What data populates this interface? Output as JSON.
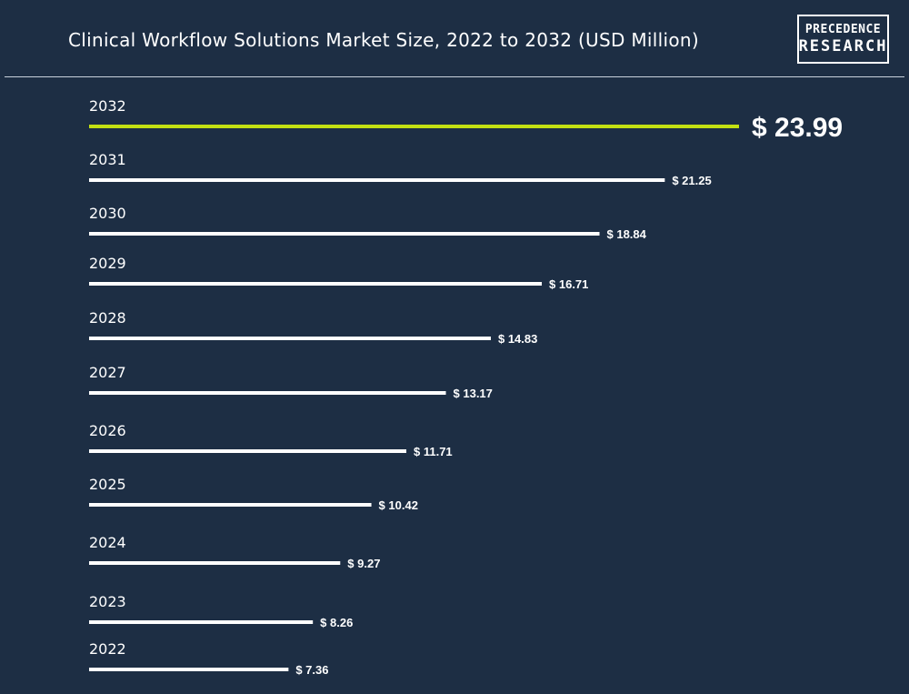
{
  "header": {
    "title": "Clinical Workflow Solutions Market Size, 2022 to 2032 (USD Million)",
    "logo_line1": "PRECEDENCE",
    "logo_line2": "RESEARCH"
  },
  "colors": {
    "background": "#1d2e44",
    "bar": "#ffffff",
    "highlight_bar": "#c2e012",
    "text": "#ffffff"
  },
  "chart_data": {
    "type": "bar",
    "orientation": "horizontal",
    "title": "Clinical Workflow Solutions Market Size, 2022 to 2032 (USD Million)",
    "categories": [
      "2032",
      "2031",
      "2030",
      "2029",
      "2028",
      "2027",
      "2026",
      "2025",
      "2024",
      "2023",
      "2022"
    ],
    "values": [
      23.99,
      21.25,
      18.84,
      16.71,
      14.83,
      13.17,
      11.71,
      10.42,
      9.27,
      8.26,
      7.36
    ],
    "value_labels": [
      "$ 23.99",
      "$ 21.25",
      "$ 18.84",
      "$ 16.71",
      "$ 14.83",
      "$ 13.17",
      "$ 11.71",
      "$ 10.42",
      "$ 9.27",
      "$ 8.26",
      "$ 7.36"
    ],
    "highlight_category": "2032",
    "xlabel": "",
    "ylabel": "",
    "grid": false,
    "legend": "none"
  }
}
